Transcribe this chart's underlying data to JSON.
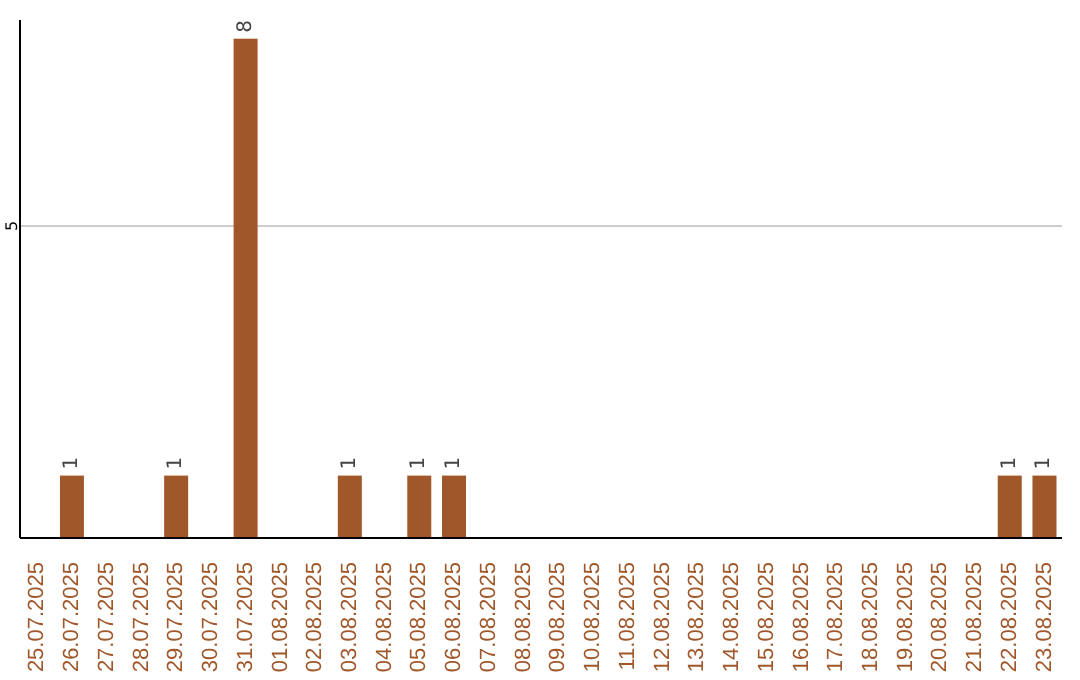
{
  "chart_data": {
    "type": "bar",
    "categories": [
      "25.07.2025",
      "26.07.2025",
      "27.07.2025",
      "28.07.2025",
      "29.07.2025",
      "30.07.2025",
      "31.07.2025",
      "01.08.2025",
      "02.08.2025",
      "03.08.2025",
      "04.08.2025",
      "05.08.2025",
      "06.08.2025",
      "07.08.2025",
      "08.08.2025",
      "09.08.2025",
      "10.08.2025",
      "11.08.2025",
      "12.08.2025",
      "13.08.2025",
      "14.08.2025",
      "15.08.2025",
      "16.08.2025",
      "17.08.2025",
      "18.08.2025",
      "19.08.2025",
      "20.08.2025",
      "21.08.2025",
      "22.08.2025",
      "23.08.2025"
    ],
    "values": [
      0,
      1,
      0,
      0,
      1,
      0,
      8,
      0,
      0,
      1,
      0,
      1,
      1,
      0,
      0,
      0,
      0,
      0,
      0,
      0,
      0,
      0,
      0,
      0,
      0,
      0,
      0,
      0,
      1,
      1
    ],
    "value_labels": [
      null,
      "1",
      null,
      null,
      "1",
      null,
      "8",
      null,
      null,
      "1",
      null,
      "1",
      "1",
      null,
      null,
      null,
      null,
      null,
      null,
      null,
      null,
      null,
      null,
      null,
      null,
      null,
      null,
      null,
      "1",
      "1"
    ],
    "color": "#a0572a",
    "ylim": [
      0,
      8.3
    ],
    "yticks": [
      5
    ],
    "grid": "y"
  }
}
